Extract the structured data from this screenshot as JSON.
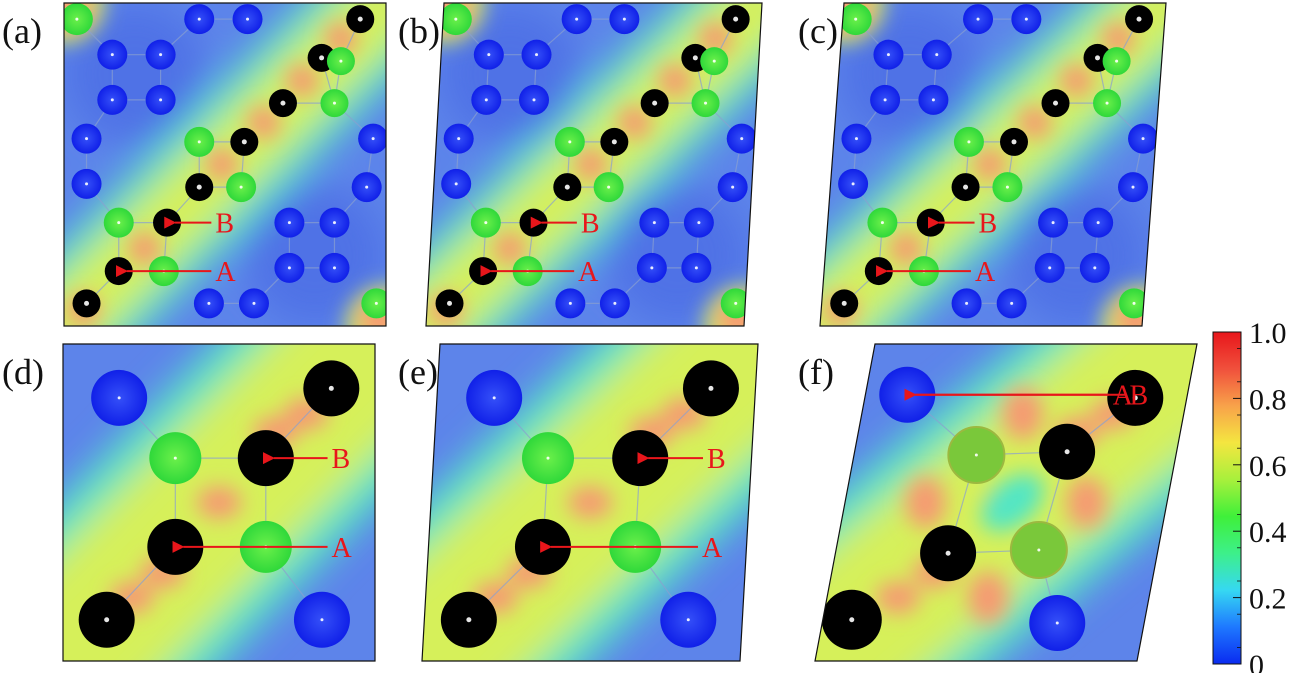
{
  "figure": {
    "panels": [
      {
        "id": "a",
        "label": "(a)"
      },
      {
        "id": "b",
        "label": "(b)"
      },
      {
        "id": "c",
        "label": "(c)"
      },
      {
        "id": "d",
        "label": "(d)"
      },
      {
        "id": "e",
        "label": "(e)"
      },
      {
        "id": "f",
        "label": "(f)"
      }
    ],
    "markers": {
      "a": "A",
      "b": "B"
    },
    "colorbar": {
      "ticks": [
        "1.0",
        "0.8",
        "0.6",
        "0.4",
        "0.2",
        "0"
      ],
      "tick_values": [
        1.0,
        0.8,
        0.6,
        0.4,
        0.2,
        0.0
      ],
      "stops": [
        "#0a2bf0",
        "#1e78ff",
        "#36d8f2",
        "#3df08a",
        "#3ff03a",
        "#a8f03c",
        "#f4e640",
        "#f8a24a",
        "#f0503c",
        "#e8161b"
      ]
    },
    "colors": {
      "background_field": "#5d84ea",
      "low_field": "#4f72e6",
      "mid_field": "#52e6c4",
      "high_field": "#d6f05a",
      "hot_spot": "#f69a72",
      "black_atom": "#000000",
      "blue_atom": "#1f2df0",
      "green_atom": "#43e83c",
      "marker": "#e8161b"
    }
  }
}
